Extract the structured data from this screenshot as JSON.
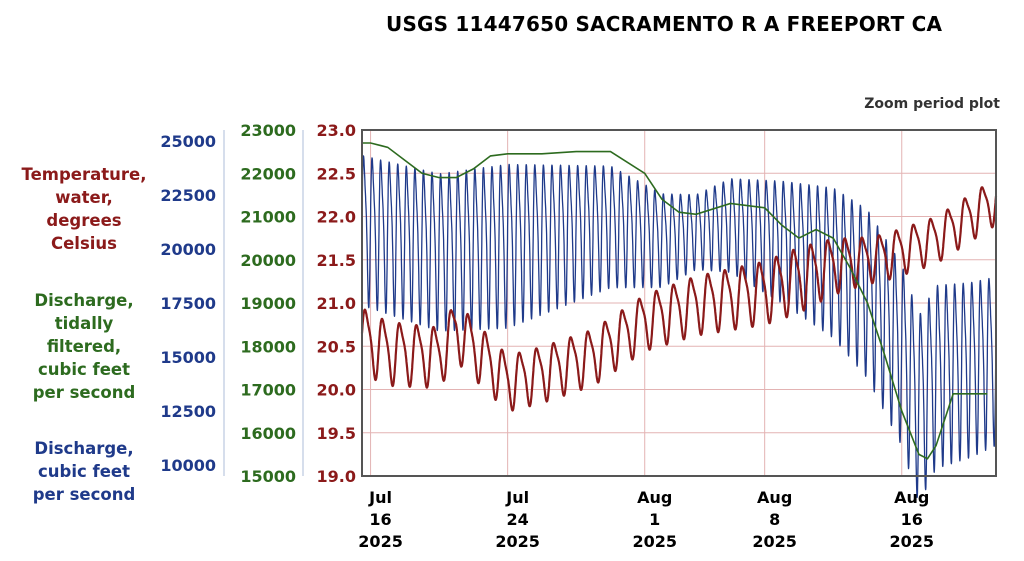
{
  "title": "USGS 11447650 SACRAMENTO R A FREEPORT CA",
  "subtitle": "Zoom period plot",
  "colors": {
    "temperature": "#8b1a1a",
    "filtered": "#2d6b1f",
    "discharge": "#1f3a8a",
    "grid": "#e3b3b3"
  },
  "axis_labels": {
    "temperature": [
      "Temperature,",
      "water,",
      "degrees",
      "Celsius"
    ],
    "filtered": [
      "Discharge,",
      "tidally",
      "filtered,",
      "cubic feet",
      "per second"
    ],
    "discharge": [
      "Discharge,",
      "cubic feet",
      "per second"
    ]
  },
  "chart_data": {
    "type": "line",
    "title": "USGS 11447650 SACRAMENTO R A FREEPORT CA",
    "xlim": [
      "2025-07-15T12:00",
      "2025-08-21T12:00"
    ],
    "x_ticks": [
      {
        "date": "2025-07-16",
        "label": [
          "Jul",
          "16",
          "2025"
        ]
      },
      {
        "date": "2025-07-24",
        "label": [
          "Jul",
          "24",
          "2025"
        ]
      },
      {
        "date": "2025-08-01",
        "label": [
          "Aug",
          "1",
          "2025"
        ]
      },
      {
        "date": "2025-08-08",
        "label": [
          "Aug",
          "8",
          "2025"
        ]
      },
      {
        "date": "2025-08-16",
        "label": [
          "Aug",
          "16",
          "2025"
        ]
      }
    ],
    "axes": {
      "temperature": {
        "ylim": [
          19.0,
          23.0
        ],
        "ticks": [
          "19.0",
          "19.5",
          "20.0",
          "20.5",
          "21.0",
          "21.5",
          "22.0",
          "22.5",
          "23.0"
        ]
      },
      "filtered": {
        "ylim": [
          15000,
          23000
        ],
        "ticks": [
          "15000",
          "16000",
          "17000",
          "18000",
          "19000",
          "20000",
          "21000",
          "22000",
          "23000"
        ]
      },
      "discharge": {
        "ylim": [
          9500,
          25500
        ],
        "ticks": [
          "10000",
          "12500",
          "15000",
          "17500",
          "20000",
          "22500",
          "25000"
        ]
      }
    },
    "grid": true,
    "series": [
      {
        "axis": "temperature",
        "cycle_days": 1.0,
        "mean_pts": [
          [
            "2025-07-15T12:00",
            20.6
          ],
          [
            "2025-07-17",
            20.45
          ],
          [
            "2025-07-20",
            20.4
          ],
          [
            "2025-07-21",
            20.7
          ],
          [
            "2025-07-23",
            20.3
          ],
          [
            "2025-07-24",
            20.1
          ],
          [
            "2025-07-26",
            20.2
          ],
          [
            "2025-07-29",
            20.4
          ],
          [
            "2025-08-01",
            20.8
          ],
          [
            "2025-08-04",
            21.0
          ],
          [
            "2025-08-08",
            21.15
          ],
          [
            "2025-08-12",
            21.45
          ],
          [
            "2025-08-15",
            21.55
          ],
          [
            "2025-08-18",
            21.75
          ],
          [
            "2025-08-21T12:00",
            22.2
          ]
        ],
        "amp_pts": [
          [
            "2025-07-15T12:00",
            0.35
          ],
          [
            "2025-07-24",
            0.3
          ],
          [
            "2025-08-01",
            0.3
          ],
          [
            "2025-08-10",
            0.35
          ],
          [
            "2025-08-14",
            0.25
          ],
          [
            "2025-08-21T12:00",
            0.25
          ]
        ]
      },
      {
        "axis": "filtered",
        "points": [
          [
            "2025-07-15T12:00",
            22700
          ],
          [
            "2025-07-16",
            22700
          ],
          [
            "2025-07-17",
            22600
          ],
          [
            "2025-07-18",
            22300
          ],
          [
            "2025-07-19",
            22000
          ],
          [
            "2025-07-20",
            21900
          ],
          [
            "2025-07-21",
            21900
          ],
          [
            "2025-07-22",
            22100
          ],
          [
            "2025-07-23",
            22400
          ],
          [
            "2025-07-24",
            22450
          ],
          [
            "2025-07-26",
            22450
          ],
          [
            "2025-07-28",
            22500
          ],
          [
            "2025-07-30",
            22500
          ],
          [
            "2025-08-01",
            22000
          ],
          [
            "2025-08-02",
            21400
          ],
          [
            "2025-08-03",
            21100
          ],
          [
            "2025-08-04",
            21050
          ],
          [
            "2025-08-06",
            21300
          ],
          [
            "2025-08-08",
            21200
          ],
          [
            "2025-08-09",
            20800
          ],
          [
            "2025-08-10",
            20500
          ],
          [
            "2025-08-11",
            20700
          ],
          [
            "2025-08-12",
            20500
          ],
          [
            "2025-08-13",
            19800
          ],
          [
            "2025-08-14",
            19000
          ],
          [
            "2025-08-15",
            17800
          ],
          [
            "2025-08-16",
            16500
          ],
          [
            "2025-08-17",
            15500
          ],
          [
            "2025-08-17T12:00",
            15400
          ],
          [
            "2025-08-18",
            15700
          ],
          [
            "2025-08-19",
            16900
          ],
          [
            "2025-08-20",
            16900
          ],
          [
            "2025-08-21",
            16900
          ]
        ]
      },
      {
        "axis": "discharge",
        "cycle_days": 0.5,
        "mean_pts": [
          [
            "2025-07-15T12:00",
            21200
          ],
          [
            "2025-07-20",
            20200
          ],
          [
            "2025-07-24",
            20500
          ],
          [
            "2025-07-30",
            21300
          ],
          [
            "2025-08-02",
            20600
          ],
          [
            "2025-08-06",
            21300
          ],
          [
            "2025-08-09",
            20600
          ],
          [
            "2025-08-12",
            19700
          ],
          [
            "2025-08-14",
            18300
          ],
          [
            "2025-08-16",
            15500
          ],
          [
            "2025-08-17",
            13000
          ],
          [
            "2025-08-18",
            14500
          ],
          [
            "2025-08-20",
            14800
          ],
          [
            "2025-08-21T12:00",
            15200
          ]
        ],
        "amp_pts": [
          [
            "2025-07-15T12:00",
            3200
          ],
          [
            "2025-07-24",
            3500
          ],
          [
            "2025-07-30",
            2600
          ],
          [
            "2025-08-04",
            1600
          ],
          [
            "2025-08-10",
            2800
          ],
          [
            "2025-08-14",
            3600
          ],
          [
            "2025-08-17",
            4000
          ],
          [
            "2025-08-21T12:00",
            3600
          ]
        ]
      }
    ]
  }
}
